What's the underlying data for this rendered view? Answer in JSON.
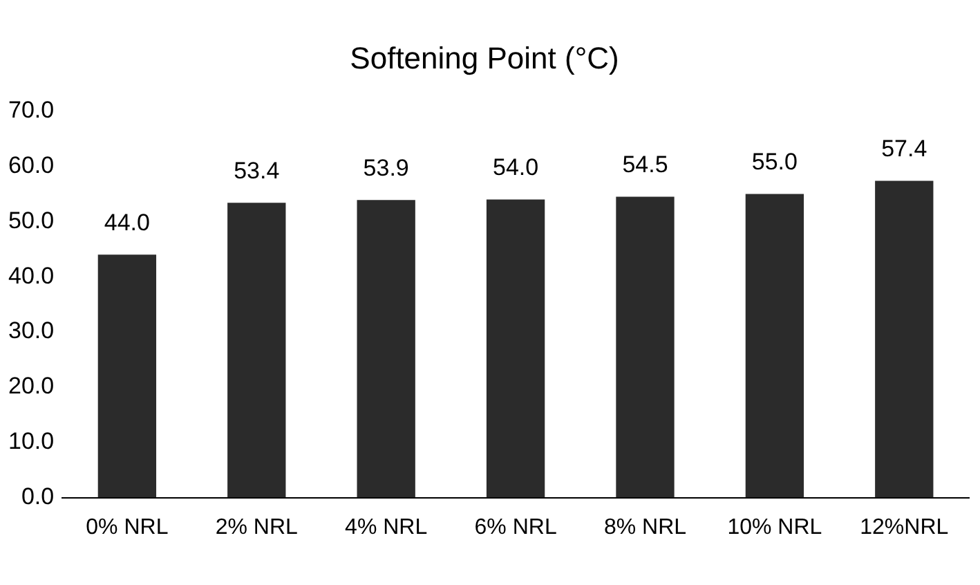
{
  "chart_data": {
    "type": "bar",
    "title": "Softening Point (°C)",
    "categories": [
      "0% NRL",
      "2% NRL",
      "4% NRL",
      "6% NRL",
      "8% NRL",
      "10% NRL",
      "12%NRL"
    ],
    "values": [
      44.0,
      53.4,
      53.9,
      54.0,
      54.5,
      55.0,
      57.4
    ],
    "value_labels": [
      "44.0",
      "53.4",
      "53.9",
      "54.0",
      "54.5",
      "55.0",
      "57.4"
    ],
    "color": "#2b2b2b",
    "ylim": [
      0,
      70
    ],
    "yticks": [
      {
        "value": 0,
        "label": "0.0"
      },
      {
        "value": 10,
        "label": "10.0"
      },
      {
        "value": 20,
        "label": "20.0"
      },
      {
        "value": 30,
        "label": "30.0"
      },
      {
        "value": 40,
        "label": "40.0"
      },
      {
        "value": 50,
        "label": "50.0"
      },
      {
        "value": 60,
        "label": "60.0"
      },
      {
        "value": 70,
        "label": "70.0"
      }
    ],
    "grid": false,
    "legend": false
  }
}
